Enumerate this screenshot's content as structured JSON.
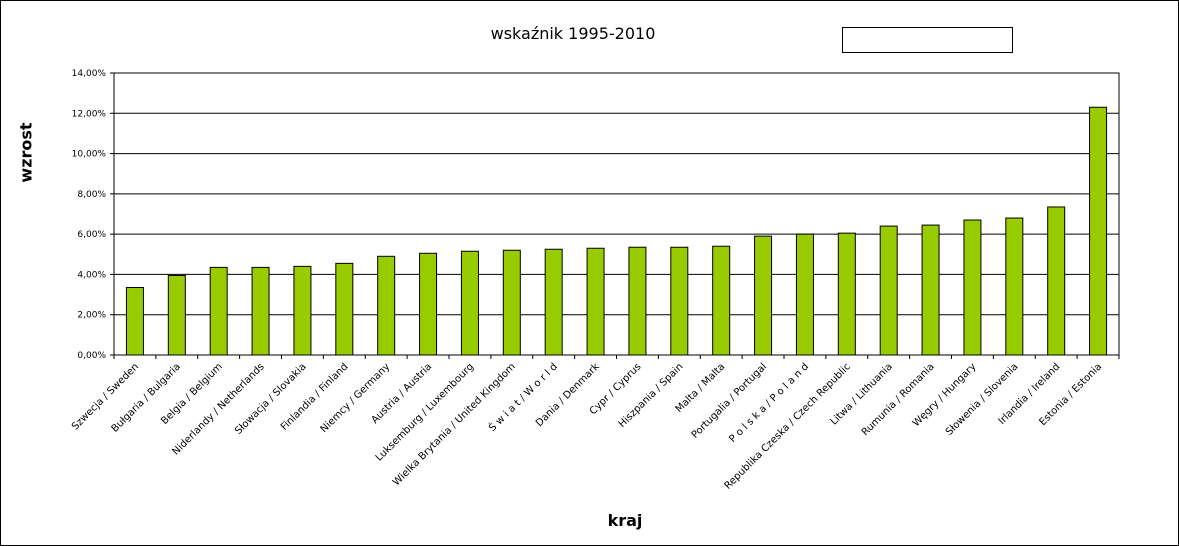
{
  "chart_data": {
    "type": "bar",
    "title": "wskaźnik 1995-2010",
    "xlabel": "kraj",
    "ylabel": "wzrost",
    "ylim": [
      0,
      14
    ],
    "yticks": [
      "0,00%",
      "2,00%",
      "4,00%",
      "6,00%",
      "8,00%",
      "10,00%",
      "12,00%",
      "14,00%"
    ],
    "grid": true,
    "bar_color": "#99cc00",
    "categories": [
      "Szwecja / Sweden",
      "Bułgaria / Bulgaria",
      "Belgia / Belgium",
      "Niderlandy / Netherlands",
      "Słowacja / Slovakia",
      "Finlandia / Finland",
      "Niemcy / Germany",
      "Austria / Austria",
      "Luksemburg / Luxembourg",
      "Wielka Brytania / United Kingdom",
      "Ś w i a t / W o r l d",
      "Dania / Denmark",
      "Cypr / Cyprus",
      "Hiszpania / Spain",
      "Malta / Malta",
      "Portugalia / Portugal",
      "P o l s k a / P o l a n d",
      "Republika Czeska / Czech Republic",
      "Litwa / Lithuania",
      "Rumunia / Romania",
      "Węgry / Hungary",
      "Słowenia / Slovenia",
      "Irlandia / Ireland",
      "Estonia / Estonia"
    ],
    "values": [
      3.35,
      3.95,
      4.35,
      4.35,
      4.4,
      4.55,
      4.9,
      5.05,
      5.15,
      5.2,
      5.25,
      5.3,
      5.35,
      5.35,
      5.4,
      5.9,
      6.0,
      6.05,
      6.4,
      6.45,
      6.7,
      6.8,
      7.35,
      12.3
    ]
  }
}
